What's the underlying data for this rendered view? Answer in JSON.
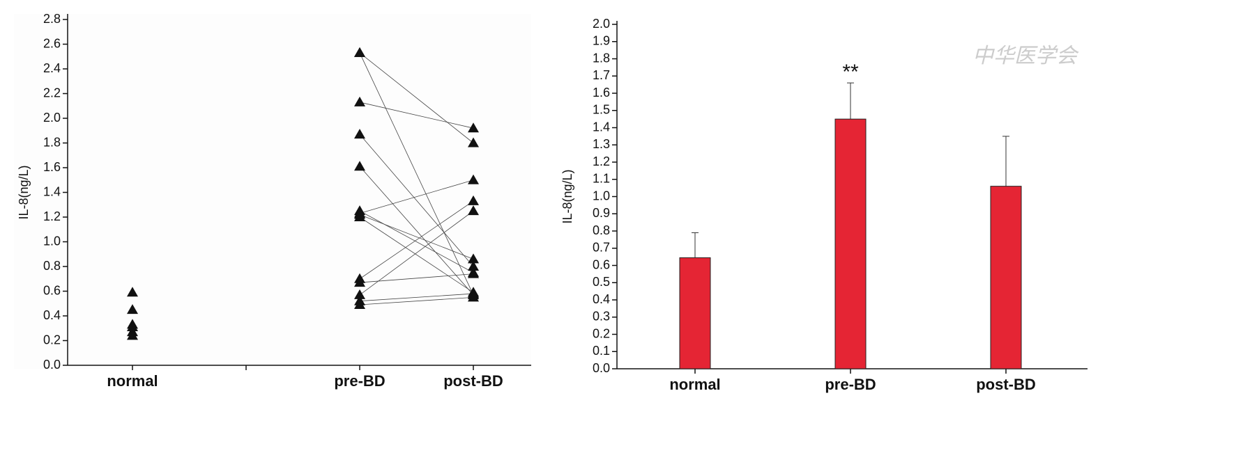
{
  "watermark": "中华医学会",
  "chart_data": [
    {
      "type": "paired-scatter",
      "y_label": "IL-8(ng/L)",
      "categories": [
        "normal",
        null,
        "pre-BD",
        "post-BD"
      ],
      "color": "#111111",
      "normal_values": [
        0.59,
        0.45,
        0.33,
        0.31,
        0.27,
        0.24
      ],
      "pre_values": [
        2.53,
        2.53,
        2.13,
        1.87,
        1.61,
        1.25,
        1.23,
        1.2,
        0.7,
        0.67,
        0.57,
        0.52,
        0.49,
        1.22
      ],
      "post_values": [
        1.8,
        0.57,
        1.92,
        0.8,
        0.57,
        0.75,
        1.5,
        0.59,
        1.33,
        0.74,
        1.25,
        0.58,
        0.55,
        0.86
      ],
      "ylim": [
        0,
        2.8
      ],
      "yticks": [
        {
          "value": 0,
          "label": "0.0"
        },
        {
          "value": 0.2,
          "label": "0.2"
        },
        {
          "value": 0.4,
          "label": "0.4"
        },
        {
          "value": 0.6,
          "label": "0.6"
        },
        {
          "value": 0.8,
          "label": "0.8"
        },
        {
          "value": 1,
          "label": "1.0"
        },
        {
          "value": 1.2,
          "label": "1.2"
        },
        {
          "value": 1.4,
          "label": "1.4"
        },
        {
          "value": 1.6,
          "label": "1.6"
        },
        {
          "value": 1.8,
          "label": "1.8"
        },
        {
          "value": 2,
          "label": "2.0"
        },
        {
          "value": 2.2,
          "label": "2.2"
        },
        {
          "value": 2.4,
          "label": "2.4"
        },
        {
          "value": 2.6,
          "label": "2.6"
        },
        {
          "value": 2.8,
          "label": "2.8"
        }
      ]
    },
    {
      "type": "bar",
      "y_label": "IL-8(ng/L)",
      "categories": [
        "normal",
        "pre-BD",
        "post-BD"
      ],
      "values": [
        0.645,
        1.45,
        1.06
      ],
      "errors": [
        0.145,
        0.21,
        0.29
      ],
      "color": "#e52534",
      "annotations": [
        "**"
      ],
      "ylim": [
        0,
        2.0
      ],
      "yticks": [
        {
          "value": 0,
          "label": "0.0"
        },
        {
          "value": 0.1,
          "label": "0.1"
        },
        {
          "value": 0.2,
          "label": "0.2"
        },
        {
          "value": 0.3,
          "label": "0.3"
        },
        {
          "value": 0.4,
          "label": "0.4"
        },
        {
          "value": 0.5,
          "label": "0.5"
        },
        {
          "value": 0.6,
          "label": "0.6"
        },
        {
          "value": 0.7,
          "label": "0.7"
        },
        {
          "value": 0.8,
          "label": "0.8"
        },
        {
          "value": 0.9,
          "label": "0.9"
        },
        {
          "value": 1,
          "label": "1.0"
        },
        {
          "value": 1.1,
          "label": "1.1"
        },
        {
          "value": 1.2,
          "label": "1.2"
        },
        {
          "value": 1.3,
          "label": "1.3"
        },
        {
          "value": 1.4,
          "label": "1.4"
        },
        {
          "value": 1.5,
          "label": "1.5"
        },
        {
          "value": 1.6,
          "label": "1.6"
        },
        {
          "value": 1.7,
          "label": "1.7"
        },
        {
          "value": 1.8,
          "label": "1.8"
        },
        {
          "value": 1.9,
          "label": "1.9"
        },
        {
          "value": 2,
          "label": "2.0"
        }
      ]
    }
  ]
}
